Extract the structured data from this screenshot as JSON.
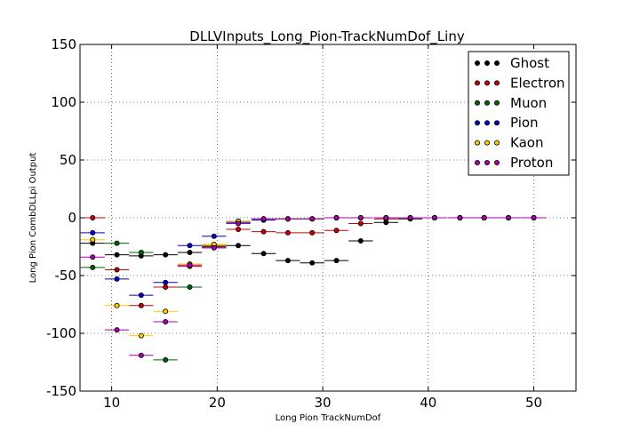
{
  "chart_data": {
    "type": "scatter",
    "title": "DLLVInputs_Long_Pion-TrackNumDof_Liny",
    "xlabel": "Long Pion TrackNumDof",
    "ylabel": "Long Pion CombDLLpi Output",
    "xlim": [
      7,
      54
    ],
    "ylim": [
      -150,
      150
    ],
    "xticks": [
      10,
      20,
      30,
      40,
      50
    ],
    "yticks": [
      -150,
      -100,
      -50,
      0,
      50,
      100,
      150
    ],
    "grid": true,
    "legend_position": "top-right",
    "bin_half_width": 1.15,
    "series": [
      {
        "name": "Ghost",
        "color": "#000000",
        "points": [
          [
            8.2,
            -22
          ],
          [
            10.5,
            -32
          ],
          [
            12.8,
            -33
          ],
          [
            15.1,
            -32
          ],
          [
            17.4,
            -30
          ],
          [
            19.7,
            -26
          ],
          [
            22.0,
            -24
          ],
          [
            24.4,
            -31
          ],
          [
            26.7,
            -37
          ],
          [
            29.0,
            -39
          ],
          [
            31.3,
            -37
          ],
          [
            33.6,
            -20
          ],
          [
            36.0,
            -4
          ],
          [
            38.3,
            -1
          ],
          [
            40.6,
            0
          ],
          [
            43.0,
            0
          ],
          [
            45.3,
            0
          ],
          [
            47.6,
            0
          ],
          [
            50.0,
            0
          ]
        ]
      },
      {
        "name": "Electron",
        "color": "#cc0000",
        "points": [
          [
            8.2,
            0
          ],
          [
            10.5,
            -45
          ],
          [
            12.8,
            -76
          ],
          [
            15.1,
            -60
          ],
          [
            17.4,
            -42
          ],
          [
            19.7,
            -25
          ],
          [
            22.0,
            -10
          ],
          [
            24.4,
            -12
          ],
          [
            26.7,
            -13
          ],
          [
            29.0,
            -13
          ],
          [
            31.3,
            -11
          ],
          [
            33.6,
            -5
          ],
          [
            36.0,
            -1
          ],
          [
            38.3,
            0
          ],
          [
            40.6,
            0
          ],
          [
            43.0,
            0
          ],
          [
            45.3,
            0
          ],
          [
            47.6,
            0
          ],
          [
            50.0,
            0
          ]
        ]
      },
      {
        "name": "Muon",
        "color": "#006600",
        "points": [
          [
            8.2,
            -43
          ],
          [
            10.5,
            -22
          ],
          [
            12.8,
            -30
          ],
          [
            15.1,
            -123
          ],
          [
            17.4,
            -60
          ],
          [
            19.7,
            -24
          ],
          [
            22.0,
            -3
          ],
          [
            24.4,
            -1
          ],
          [
            26.7,
            -1
          ],
          [
            29.0,
            -1
          ],
          [
            31.3,
            0
          ],
          [
            33.6,
            0
          ],
          [
            36.0,
            0
          ],
          [
            38.3,
            0
          ],
          [
            40.6,
            0
          ],
          [
            43.0,
            0
          ],
          [
            45.3,
            0
          ],
          [
            47.6,
            0
          ],
          [
            50.0,
            0
          ]
        ]
      },
      {
        "name": "Pion",
        "color": "#0000cc",
        "points": [
          [
            8.2,
            -13
          ],
          [
            10.5,
            -53
          ],
          [
            12.8,
            -67
          ],
          [
            15.1,
            -56
          ],
          [
            17.4,
            -24
          ],
          [
            19.7,
            -16
          ],
          [
            22.0,
            -4
          ],
          [
            24.4,
            -2
          ],
          [
            26.7,
            -1
          ],
          [
            29.0,
            -1
          ],
          [
            31.3,
            0
          ],
          [
            33.6,
            0
          ],
          [
            36.0,
            0
          ],
          [
            38.3,
            0
          ],
          [
            40.6,
            0
          ],
          [
            43.0,
            0
          ],
          [
            45.3,
            0
          ],
          [
            47.6,
            0
          ],
          [
            50.0,
            0
          ]
        ]
      },
      {
        "name": "Kaon",
        "color": "#ffcc00",
        "points": [
          [
            8.2,
            -19
          ],
          [
            10.5,
            -76
          ],
          [
            12.8,
            -102
          ],
          [
            15.1,
            -81
          ],
          [
            17.4,
            -40
          ],
          [
            19.7,
            -23
          ],
          [
            22.0,
            -3
          ],
          [
            24.4,
            -1
          ],
          [
            26.7,
            -1
          ],
          [
            29.0,
            -1
          ],
          [
            31.3,
            0
          ],
          [
            33.6,
            0
          ],
          [
            36.0,
            0
          ],
          [
            38.3,
            0
          ],
          [
            40.6,
            0
          ],
          [
            43.0,
            0
          ],
          [
            45.3,
            0
          ],
          [
            47.6,
            0
          ],
          [
            50.0,
            0
          ]
        ]
      },
      {
        "name": "Proton",
        "color": "#aa00aa",
        "points": [
          [
            8.2,
            -34
          ],
          [
            10.5,
            -97
          ],
          [
            12.8,
            -119
          ],
          [
            15.1,
            -90
          ],
          [
            17.4,
            -41
          ],
          [
            19.7,
            -26
          ],
          [
            22.0,
            -5
          ],
          [
            24.4,
            -1
          ],
          [
            26.7,
            -1
          ],
          [
            29.0,
            -1
          ],
          [
            31.3,
            0
          ],
          [
            33.6,
            0
          ],
          [
            36.0,
            0
          ],
          [
            38.3,
            0
          ],
          [
            40.6,
            0
          ],
          [
            43.0,
            0
          ],
          [
            45.3,
            0
          ],
          [
            47.6,
            0
          ],
          [
            50.0,
            0
          ]
        ]
      }
    ]
  }
}
